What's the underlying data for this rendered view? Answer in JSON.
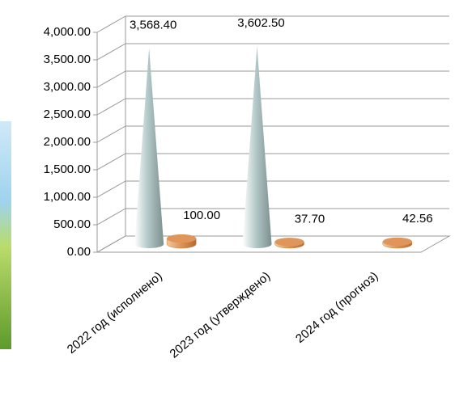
{
  "chart_data": {
    "type": "cone3d",
    "categories": [
      "2022 год (исполнено)",
      "2023 год (утверждено)",
      "2024 год (прогноз)"
    ],
    "series": [
      {
        "color": "#b4c9c9",
        "values": [
          3568.4,
          3602.5,
          null
        ],
        "value_labels": [
          "3,568.40",
          "3,602.50",
          null
        ]
      },
      {
        "color": "#e0965a",
        "values": [
          100.0,
          37.7,
          42.56
        ],
        "value_labels": [
          "100.00",
          "37.70",
          "42.56"
        ]
      }
    ],
    "ylim": [
      0,
      4000
    ],
    "yticks": [
      {
        "value": 0,
        "label": "0.00"
      },
      {
        "value": 500,
        "label": "500.00"
      },
      {
        "value": 1000,
        "label": "1,000.00"
      },
      {
        "value": 1500,
        "label": "1,500.00"
      },
      {
        "value": 2000,
        "label": "2,000.00"
      },
      {
        "value": 2500,
        "label": "2,500.00"
      },
      {
        "value": 3000,
        "label": "3,000.00"
      },
      {
        "value": 3500,
        "label": "3,500.00"
      },
      {
        "value": 4000,
        "label": "4,000.00"
      }
    ],
    "grid": true
  }
}
